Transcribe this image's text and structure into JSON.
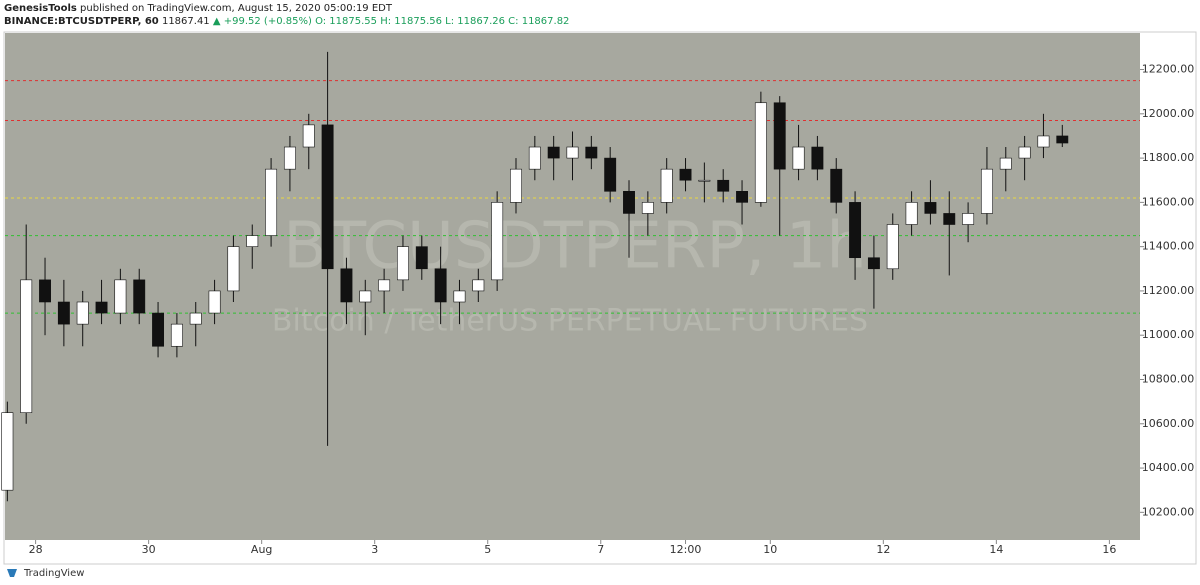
{
  "header": {
    "author": "GenesisTools",
    "published": "published on TradingView.com, August 15, 2020 05:00:19 EDT",
    "symbol": "BINANCE:BTCUSDTPERP, 60",
    "last": "11867.41",
    "change": "▲ +99.52 (+0.85%)",
    "ohlc": "O: 11875.55 H: 11875.56 L: 11867.26 C: 11867.82"
  },
  "footer": {
    "brand": "TradingView"
  },
  "chart_data": {
    "type": "candlestick",
    "watermark": "BTCUSDTPERP, 1h",
    "watermark_sub": "Bitcoin / TetherUS PERPETUAL FUTURES",
    "x": [
      -12,
      -4,
      4,
      12,
      20,
      28,
      36,
      44,
      52,
      60,
      68,
      76,
      84,
      92,
      100,
      108,
      116,
      124,
      132,
      140,
      148,
      156,
      164,
      172,
      180,
      188,
      196,
      204,
      212,
      220,
      228,
      236,
      244,
      252,
      260,
      268,
      276,
      284,
      292,
      300,
      308,
      316,
      324,
      332,
      340,
      348,
      356,
      364,
      372,
      380,
      388,
      396,
      404,
      412,
      420,
      428,
      436
    ],
    "series": [
      {
        "name": "BTCUSDTPERP",
        "up_color": "#ffffff",
        "down_color": "#111111",
        "open": [
          10300,
          10650,
          11250,
          11150,
          11050,
          11150,
          11100,
          11250,
          11100,
          10950,
          11050,
          11100,
          11200,
          11400,
          11450,
          11750,
          11850,
          11950,
          11300,
          11150,
          11200,
          11250,
          11400,
          11300,
          11150,
          11200,
          11250,
          11600,
          11750,
          11850,
          11800,
          11850,
          11800,
          11650,
          11550,
          11600,
          11750,
          11700,
          11700,
          11650,
          11600,
          12050,
          11750,
          11850,
          11750,
          11600,
          11350,
          11300,
          11500,
          11600,
          11550,
          11500,
          11550,
          11750,
          11800,
          11850,
          11900
        ],
        "high": [
          10700,
          11500,
          11350,
          11250,
          11200,
          11250,
          11300,
          11300,
          11150,
          11100,
          11150,
          11250,
          11450,
          11500,
          11800,
          11900,
          12000,
          12280,
          11350,
          11250,
          11300,
          11450,
          11450,
          11400,
          11250,
          11300,
          11650,
          11800,
          11900,
          11900,
          11920,
          11900,
          11850,
          11700,
          11650,
          11800,
          11800,
          11780,
          11750,
          11700,
          12100,
          12080,
          11950,
          11900,
          11800,
          11650,
          11450,
          11550,
          11650,
          11700,
          11650,
          11600,
          11850,
          11850,
          11900,
          12000,
          11950
        ],
        "low": [
          10250,
          10600,
          11000,
          10950,
          10950,
          11050,
          11050,
          11050,
          10900,
          10900,
          10950,
          11050,
          11150,
          11300,
          11400,
          11650,
          11750,
          10500,
          11050,
          11000,
          11100,
          11200,
          11250,
          11050,
          11050,
          11150,
          11200,
          11550,
          11700,
          11700,
          11700,
          11750,
          11600,
          11350,
          11450,
          11550,
          11650,
          11600,
          11600,
          11500,
          11580,
          11450,
          11700,
          11700,
          11550,
          11250,
          11120,
          11250,
          11450,
          11500,
          11270,
          11420,
          11500,
          11650,
          11700,
          11800,
          11850
        ],
        "close": [
          10650,
          11250,
          11150,
          11050,
          11150,
          11100,
          11250,
          11100,
          10950,
          11050,
          11100,
          11200,
          11400,
          11450,
          11750,
          11850,
          11950,
          11300,
          11150,
          11200,
          11250,
          11400,
          11300,
          11150,
          11200,
          11250,
          11600,
          11750,
          11850,
          11800,
          11850,
          11800,
          11650,
          11550,
          11600,
          11750,
          11700,
          11700,
          11650,
          11600,
          12050,
          11750,
          11850,
          11750,
          11600,
          11350,
          11300,
          11500,
          11600,
          11550,
          11500,
          11550,
          11750,
          11800,
          11850,
          11900,
          11868
        ]
      }
    ],
    "levels": [
      {
        "value": 12150,
        "color": "#e03030"
      },
      {
        "value": 11970,
        "color": "#e03030"
      },
      {
        "value": 11620,
        "color": "#e8d840"
      },
      {
        "value": 11450,
        "color": "#30c030"
      },
      {
        "value": 11100,
        "color": "#30c030"
      }
    ],
    "xlim": [
      -13,
      469
    ],
    "xticks": [
      {
        "value": 0,
        "label": "28"
      },
      {
        "value": 48,
        "label": "30"
      },
      {
        "value": 96,
        "label": "Aug"
      },
      {
        "value": 144,
        "label": "3"
      },
      {
        "value": 192,
        "label": "5"
      },
      {
        "value": 240,
        "label": "7"
      },
      {
        "value": 276,
        "label": "12:00"
      },
      {
        "value": 312,
        "label": "10"
      },
      {
        "value": 360,
        "label": "12"
      },
      {
        "value": 408,
        "label": "14"
      },
      {
        "value": 456,
        "label": "16"
      }
    ],
    "ylim": [
      10075,
      12365
    ],
    "yticks": [
      {
        "value": 10200,
        "label": "10200.00"
      },
      {
        "value": 10400,
        "label": "10400.00"
      },
      {
        "value": 10600,
        "label": "10600.00"
      },
      {
        "value": 10800,
        "label": "10800.00"
      },
      {
        "value": 11000,
        "label": "11000.00"
      },
      {
        "value": 11200,
        "label": "11200.00"
      },
      {
        "value": 11400,
        "label": "11400.00"
      },
      {
        "value": 11600,
        "label": "11600.00"
      },
      {
        "value": 11800,
        "label": "11800.00"
      },
      {
        "value": 12000,
        "label": "12000.00"
      },
      {
        "value": 12200,
        "label": "12200.00"
      }
    ]
  }
}
